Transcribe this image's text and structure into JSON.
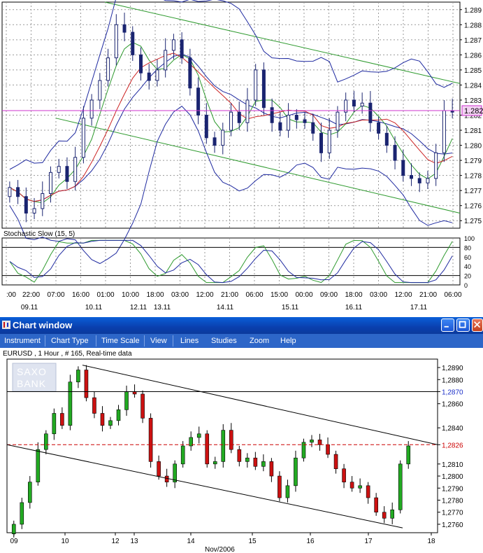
{
  "top_chart": {
    "y_ticks": [
      "1.289",
      "1.288",
      "1.287",
      "1.286",
      "1.285",
      "1.284",
      "1.283",
      "1.282",
      "1.281",
      "1.280",
      "1.279",
      "1.278",
      "1.277",
      "1.276",
      "1.275"
    ],
    "price_badge": "1.282",
    "indicator_label": "Stochastic Slow (15, 5)",
    "osc_ticks": [
      "100",
      "80",
      "60",
      "40",
      "20",
      "0"
    ],
    "time_labels": [
      ":00",
      "22:00",
      "07:00",
      "16:00",
      "01:00",
      "10:00",
      "18:00",
      "03:00",
      "12:00",
      "21:00",
      "06:00",
      "15:00",
      "00:00",
      "09:00",
      "18:00",
      "03:00",
      "12:00",
      "21:00",
      "06:00"
    ],
    "date_labels": [
      "09.11",
      "10.11",
      "12.11",
      "13.11",
      "14.11",
      "15.11",
      "16.11",
      "17.11"
    ],
    "colors": {
      "grid": "#9a9a9a",
      "channel": "#2e9a2e",
      "bands": "#1f2aa0",
      "price_line": "#cc33cc",
      "ma_fast": "#2e9a2e",
      "ma_slow": "#cc2222"
    }
  },
  "window": {
    "title": "Chart window",
    "menu": [
      "Instrument",
      "Chart Type",
      "Time Scale",
      "View",
      "Lines",
      "Studies",
      "Zoom",
      "Help"
    ]
  },
  "lower_chart": {
    "info": "EURUSD , 1 Hour , # 165, Real-time data",
    "logo": [
      "SAXO",
      "BANK"
    ],
    "y_ticks": [
      "1,2890",
      "1,2880",
      "1,2870",
      "1,2860",
      "1,2840",
      "1,2826",
      "1,2810",
      "1,2800",
      "1,2790",
      "1,2780",
      "1,2770",
      "1,2760"
    ],
    "highlight_ticks": {
      "1,2870": "#1a2ec8",
      "1,2826": "#cc0000"
    },
    "x_ticks": [
      "09",
      "10",
      "12",
      "13",
      "14",
      "15",
      "16",
      "17",
      "18"
    ],
    "x_caption": "Nov/2006",
    "colors": {
      "up": "#22aa22",
      "down": "#cc1111",
      "trend": "#000000",
      "level": "#cc0000"
    }
  },
  "chart_data": [
    {
      "type": "candlestick",
      "instrument": "EURUSD",
      "timeframe": "1 Hour",
      "ylim": [
        1.2745,
        1.2895
      ],
      "price_line": 1.2823,
      "indicators": [
        "Bollinger Bands",
        "Moving Averages",
        "Stochastic Slow (15, 5)"
      ],
      "close_series": [
        1.2772,
        1.2766,
        1.2755,
        1.2758,
        1.2768,
        1.2782,
        1.2786,
        1.2776,
        1.2792,
        1.2818,
        1.283,
        1.2843,
        1.2858,
        1.288,
        1.2875,
        1.286,
        1.2848,
        1.2843,
        1.285,
        1.2863,
        1.287,
        1.2858,
        1.2838,
        1.282,
        1.2805,
        1.28,
        1.281,
        1.2822,
        1.2815,
        1.283,
        1.285,
        1.2825,
        1.2815,
        1.281,
        1.282,
        1.2817,
        1.2815,
        1.2808,
        1.2795,
        1.281,
        1.2822,
        1.283,
        1.2826,
        1.2828,
        1.2815,
        1.2808,
        1.28,
        1.279,
        1.278,
        1.2778,
        1.2775,
        1.2778,
        1.2795,
        1.2823,
        1.2822
      ]
    },
    {
      "type": "candlestick",
      "instrument": "EURUSD",
      "timeframe": "1 Hour",
      "bars": 165,
      "x_axis": [
        "09",
        "10",
        "12",
        "13",
        "14",
        "15",
        "16",
        "17",
        "18"
      ],
      "ylim": [
        1.2753,
        1.2897
      ],
      "horizontal_levels": [
        1.287,
        1.2826
      ],
      "close_series": [
        1.276,
        1.2778,
        1.2795,
        1.2822,
        1.2835,
        1.2852,
        1.2842,
        1.2878,
        1.2888,
        1.2865,
        1.2852,
        1.2842,
        1.2846,
        1.2855,
        1.287,
        1.2868,
        1.2848,
        1.2812,
        1.28,
        1.2795,
        1.281,
        1.2825,
        1.2832,
        1.2835,
        1.281,
        1.2812,
        1.2838,
        1.2822,
        1.2812,
        1.2815,
        1.2808,
        1.2812,
        1.28,
        1.2782,
        1.2792,
        1.2815,
        1.2828,
        1.283,
        1.2826,
        1.2818,
        1.2806,
        1.2795,
        1.279,
        1.2792,
        1.2782,
        1.277,
        1.2765,
        1.2772,
        1.281,
        1.2825
      ]
    }
  ]
}
